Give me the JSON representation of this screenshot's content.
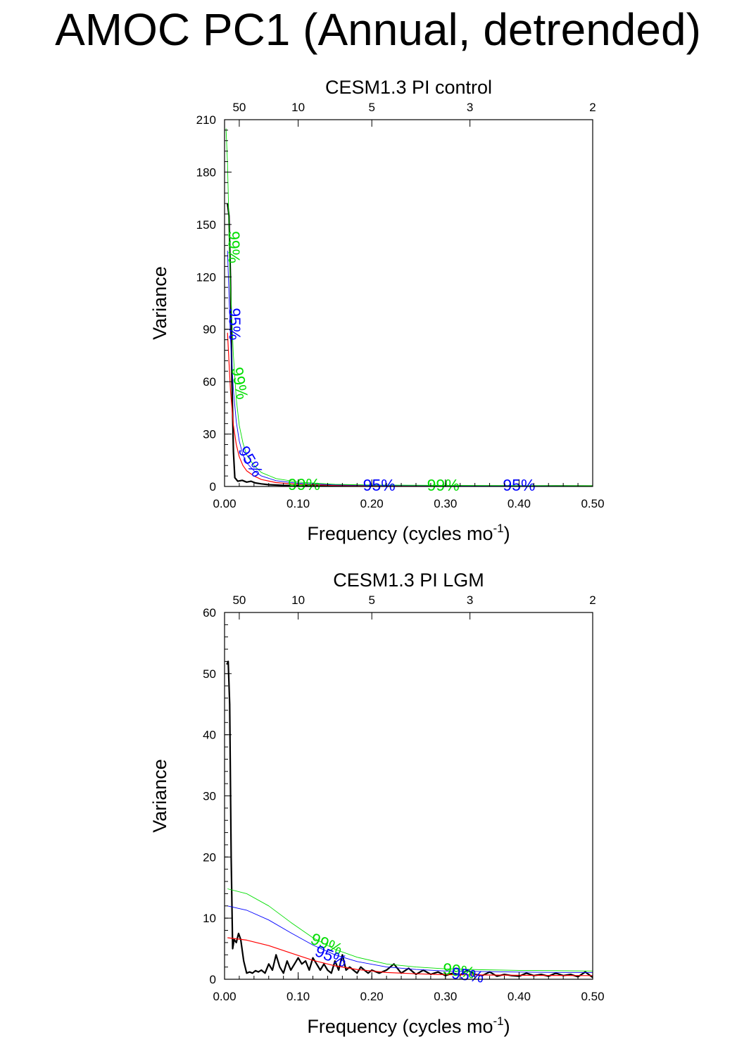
{
  "title": "AMOC PC1 (Annual, detrended)",
  "chart_data": [
    {
      "type": "line",
      "title": "CESM1.3 PI control",
      "xlabel": "Frequency (cycles mo",
      "xlabel_sup": "-1",
      "xlabel_end": ")",
      "ylabel": "Variance",
      "xlim": [
        0,
        0.5
      ],
      "ylim": [
        0,
        210
      ],
      "xticks": [
        0.0,
        0.1,
        0.2,
        0.3,
        0.4,
        0.5
      ],
      "xtick_labels": [
        "0.00",
        "0.10",
        "0.20",
        "0.30",
        "0.40",
        "0.50"
      ],
      "yticks": [
        0,
        30,
        60,
        90,
        120,
        150,
        180,
        210
      ],
      "ytick_labels": [
        "0",
        "30",
        "60",
        "90",
        "120",
        "150",
        "180",
        "210"
      ],
      "top_axis": {
        "label_values": [
          "50",
          "10",
          "5",
          "3",
          "2"
        ],
        "frequencies": [
          0.02,
          0.1,
          0.2,
          0.3333,
          0.5
        ]
      },
      "series": [
        {
          "color": "#000000",
          "stroke": 2.2,
          "x": [
            0.004,
            0.006,
            0.008,
            0.01,
            0.012,
            0.014,
            0.018,
            0.024,
            0.03,
            0.036,
            0.042,
            0.05,
            0.06,
            0.08,
            0.1,
            0.15,
            0.2,
            0.25,
            0.3,
            0.35,
            0.4,
            0.45,
            0.5
          ],
          "y": [
            162,
            155,
            120,
            60,
            20,
            5,
            3,
            3.5,
            2.5,
            3,
            2,
            1.5,
            1,
            0.6,
            0.4,
            0.3,
            0.3,
            0.25,
            0.3,
            0.2,
            0.2,
            0.25,
            0.2
          ]
        },
        {
          "color": "#ff0000",
          "stroke": 1.2,
          "x": [
            0.004,
            0.008,
            0.012,
            0.016,
            0.02,
            0.025,
            0.03,
            0.04,
            0.05,
            0.07,
            0.1,
            0.15,
            0.2,
            0.3,
            0.4,
            0.5
          ],
          "y": [
            88,
            55,
            35,
            24,
            17,
            12,
            9,
            6,
            4,
            2.2,
            1.2,
            0.6,
            0.4,
            0.3,
            0.25,
            0.2
          ]
        },
        {
          "color": "#0000ff",
          "stroke": 0.9,
          "x": [
            0.004,
            0.008,
            0.012,
            0.016,
            0.02,
            0.025,
            0.03,
            0.04,
            0.05,
            0.07,
            0.1,
            0.15,
            0.2,
            0.3,
            0.4,
            0.5
          ],
          "y": [
            135,
            85,
            55,
            37,
            26,
            18,
            13.5,
            9,
            6,
            3.3,
            1.8,
            0.9,
            0.6,
            0.45,
            0.38,
            0.3
          ]
        },
        {
          "color": "#00dd00",
          "stroke": 0.9,
          "x": [
            0.002,
            0.004,
            0.008,
            0.012,
            0.016,
            0.02,
            0.025,
            0.03,
            0.04,
            0.05,
            0.07,
            0.1,
            0.15,
            0.2,
            0.3,
            0.4,
            0.5
          ],
          "y": [
            205,
            185,
            115,
            75,
            50,
            35,
            25,
            18,
            12,
            8,
            4.5,
            2.5,
            1.2,
            0.8,
            0.6,
            0.5,
            0.4
          ]
        }
      ],
      "annotations": [
        {
          "text": "99%",
          "x": 0.011,
          "y": 137,
          "rotate": 90,
          "color": "#00dd00"
        },
        {
          "text": "95%",
          "x": 0.012,
          "y": 93,
          "rotate": 90,
          "color": "#0000ff"
        },
        {
          "text": "99%",
          "x": 0.019,
          "y": 59,
          "rotate": 80,
          "color": "#00dd00"
        },
        {
          "text": "95%",
          "x": 0.034,
          "y": 14,
          "rotate": 60,
          "color": "#0000ff"
        },
        {
          "text": "99%",
          "x": 0.108,
          "y": 0.5,
          "rotate": 0,
          "color": "#00dd00"
        },
        {
          "text": "95%",
          "x": 0.21,
          "y": 0,
          "rotate": 0,
          "color": "#0000ff"
        },
        {
          "text": "99%",
          "x": 0.297,
          "y": 0,
          "rotate": 0,
          "color": "#00dd00"
        },
        {
          "text": "95%",
          "x": 0.4,
          "y": 0,
          "rotate": 0,
          "color": "#0000ff"
        }
      ]
    },
    {
      "type": "line",
      "title": "CESM1.3 PI LGM",
      "xlabel": "Frequency (cycles mo",
      "xlabel_sup": "-1",
      "xlabel_end": ")",
      "ylabel": "Variance",
      "xlim": [
        0,
        0.5
      ],
      "ylim": [
        0,
        60
      ],
      "xticks": [
        0.0,
        0.1,
        0.2,
        0.3,
        0.4,
        0.5
      ],
      "xtick_labels": [
        "0.00",
        "0.10",
        "0.20",
        "0.30",
        "0.40",
        "0.50"
      ],
      "yticks": [
        0,
        10,
        20,
        30,
        40,
        50,
        60
      ],
      "ytick_labels": [
        "0",
        "10",
        "20",
        "30",
        "40",
        "50",
        "60"
      ],
      "top_axis": {
        "label_values": [
          "50",
          "10",
          "5",
          "3",
          "2"
        ],
        "frequencies": [
          0.02,
          0.1,
          0.2,
          0.3333,
          0.5
        ]
      },
      "series": [
        {
          "color": "#000000",
          "stroke": 2.2,
          "x": [
            0.003,
            0.005,
            0.007,
            0.009,
            0.011,
            0.013,
            0.016,
            0.019,
            0.022,
            0.026,
            0.03,
            0.034,
            0.038,
            0.042,
            0.046,
            0.05,
            0.055,
            0.06,
            0.065,
            0.07,
            0.075,
            0.08,
            0.085,
            0.09,
            0.095,
            0.1,
            0.105,
            0.11,
            0.115,
            0.12,
            0.125,
            0.13,
            0.135,
            0.14,
            0.145,
            0.15,
            0.155,
            0.16,
            0.165,
            0.17,
            0.175,
            0.18,
            0.185,
            0.19,
            0.195,
            0.2,
            0.21,
            0.22,
            0.23,
            0.24,
            0.25,
            0.26,
            0.27,
            0.28,
            0.29,
            0.3,
            0.31,
            0.32,
            0.33,
            0.34,
            0.35,
            0.36,
            0.37,
            0.38,
            0.39,
            0.4,
            0.41,
            0.42,
            0.43,
            0.44,
            0.45,
            0.46,
            0.47,
            0.48,
            0.49,
            0.5
          ],
          "y": [
            51.5,
            52,
            45,
            20,
            5,
            6.5,
            6,
            7.5,
            6.5,
            3,
            1,
            1.2,
            1,
            1.4,
            1.2,
            1.5,
            1,
            2.5,
            1.5,
            4,
            2,
            1,
            3,
            1.5,
            2.5,
            3.5,
            2.5,
            3,
            1.5,
            3.5,
            2.5,
            1.5,
            2.5,
            1.5,
            1,
            3,
            1.5,
            4,
            1.5,
            2,
            1.5,
            1,
            2,
            1.5,
            1,
            1.5,
            1,
            1.5,
            2.5,
            1,
            1.8,
            0.8,
            1.5,
            0.8,
            1.2,
            0.6,
            1,
            0.7,
            1.5,
            0.8,
            0.6,
            1.2,
            0.5,
            0.8,
            0.6,
            0.5,
            1,
            0.6,
            0.8,
            0.5,
            1,
            0.6,
            0.8,
            0.4,
            1.2,
            0.3
          ]
        },
        {
          "color": "#ff0000",
          "stroke": 1.2,
          "x": [
            0.004,
            0.03,
            0.06,
            0.09,
            0.12,
            0.15,
            0.18,
            0.22,
            0.26,
            0.3,
            0.35,
            0.4,
            0.45,
            0.5
          ],
          "y": [
            6.8,
            6.4,
            5.5,
            4.3,
            3.1,
            2.2,
            1.6,
            1.1,
            0.9,
            0.75,
            0.7,
            0.65,
            0.62,
            0.6
          ]
        },
        {
          "color": "#0000ff",
          "stroke": 0.9,
          "x": [
            0.004,
            0.03,
            0.06,
            0.09,
            0.12,
            0.15,
            0.18,
            0.22,
            0.26,
            0.3,
            0.35,
            0.4,
            0.45,
            0.5
          ],
          "y": [
            12.0,
            11.3,
            9.7,
            7.6,
            5.6,
            4.0,
            2.9,
            2.0,
            1.6,
            1.35,
            1.25,
            1.18,
            1.12,
            1.1
          ]
        },
        {
          "color": "#00dd00",
          "stroke": 0.9,
          "x": [
            0.004,
            0.03,
            0.06,
            0.09,
            0.12,
            0.15,
            0.18,
            0.22,
            0.26,
            0.3,
            0.35,
            0.4,
            0.45,
            0.5
          ],
          "y": [
            14.8,
            14.0,
            12.0,
            9.3,
            6.8,
            4.9,
            3.6,
            2.5,
            2.0,
            1.7,
            1.55,
            1.45,
            1.4,
            1.35
          ]
        }
      ],
      "annotations": [
        {
          "text": "99%",
          "x": 0.138,
          "y": 5.6,
          "rotate": 22,
          "color": "#00dd00"
        },
        {
          "text": "95%",
          "x": 0.144,
          "y": 3.6,
          "rotate": 22,
          "color": "#0000ff"
        },
        {
          "text": "99%",
          "x": 0.318,
          "y": 1.2,
          "rotate": 8,
          "color": "#00dd00"
        },
        {
          "text": "95%",
          "x": 0.33,
          "y": 0.5,
          "rotate": 8,
          "color": "#0000ff"
        }
      ]
    }
  ]
}
